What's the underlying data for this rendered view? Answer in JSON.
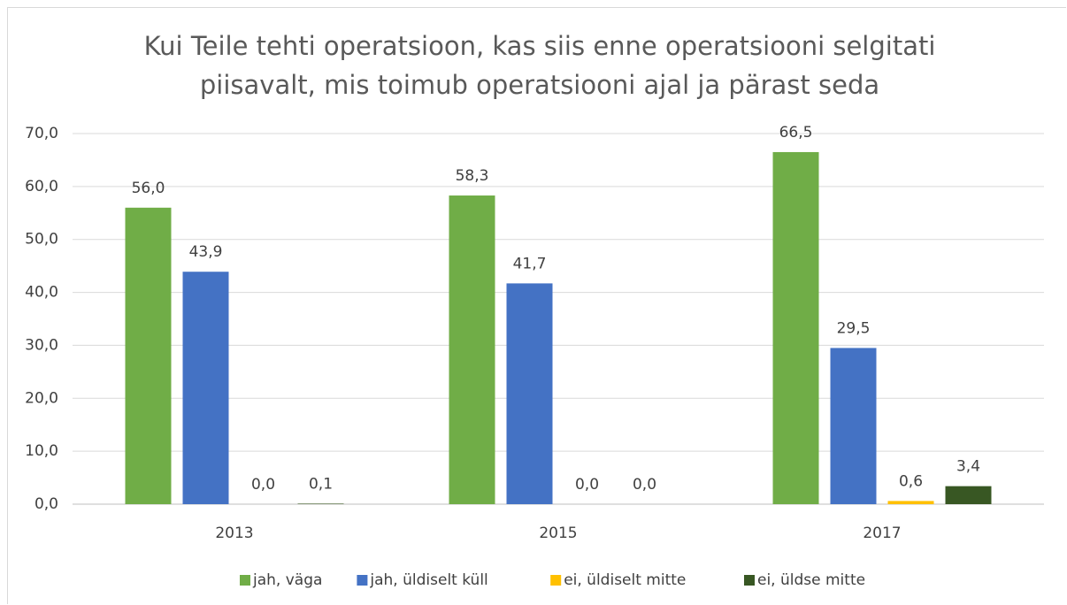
{
  "chart_data": {
    "type": "bar",
    "title": "Kui Teile tehti operatsioon, kas siis enne operatsiooni selgitati piisavalt, mis toimub operatsiooni ajal ja pärast seda",
    "categories": [
      "2013",
      "2015",
      "2017"
    ],
    "series": [
      {
        "name": "jah, väga",
        "color": "#70ad47",
        "values": [
          56.0,
          58.3,
          66.5
        ],
        "value_labels": [
          "56,0",
          "58,3",
          "66,5"
        ]
      },
      {
        "name": "jah, üldiselt küll",
        "color": "#4472c4",
        "values": [
          43.9,
          41.7,
          29.5
        ],
        "value_labels": [
          "43,9",
          "41,7",
          "29,5"
        ]
      },
      {
        "name": "ei, üldiselt mitte",
        "color": "#ffc000",
        "values": [
          0.0,
          0.0,
          0.6
        ],
        "value_labels": [
          "0,0",
          "0,0",
          "0,6"
        ]
      },
      {
        "name": "ei, üldse mitte",
        "color": "#385723",
        "values": [
          0.1,
          0.0,
          3.4
        ],
        "value_labels": [
          "0,1",
          "0,0",
          "3,4"
        ]
      }
    ],
    "ylim": [
      0,
      70
    ],
    "yticks": [
      {
        "value": 0,
        "label": "0,0"
      },
      {
        "value": 10,
        "label": "10,0"
      },
      {
        "value": 20,
        "label": "20,0"
      },
      {
        "value": 30,
        "label": "30,0"
      },
      {
        "value": 40,
        "label": "40,0"
      },
      {
        "value": 50,
        "label": "50,0"
      },
      {
        "value": 60,
        "label": "60,0"
      },
      {
        "value": 70,
        "label": "70,0"
      }
    ],
    "grid": true,
    "legend": "bottom"
  }
}
